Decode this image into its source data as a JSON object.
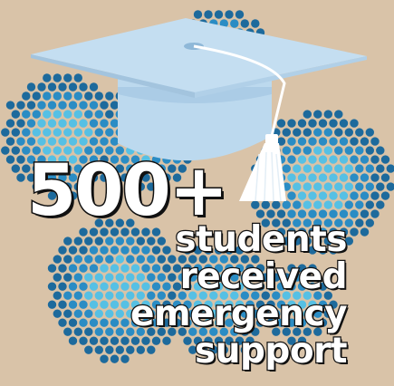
{
  "headline": {
    "number": "500+",
    "lines": [
      "students",
      "received",
      "emergency",
      "support"
    ]
  },
  "colors": {
    "background": "#d9c3a8",
    "dot_dark": "#1d6a9c",
    "dot_mid": "#2a8cc4",
    "dot_light": "#56c0e4",
    "cap": "#bcd9ee",
    "tassel": "#ffffff"
  },
  "icons": {
    "cap": "graduation-cap-icon",
    "dots": "dot-cluster-art"
  }
}
